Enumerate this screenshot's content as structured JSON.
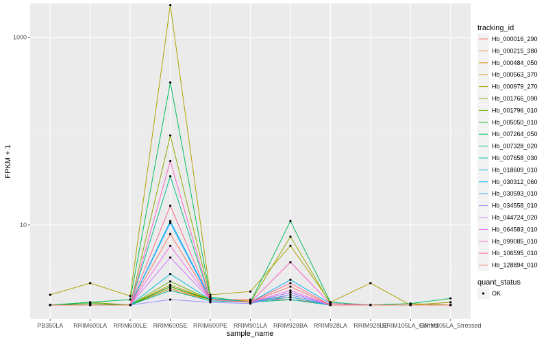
{
  "chart_data": {
    "type": "line",
    "ylabel": "FPKM + 1",
    "xlabel": "sample_name",
    "y_scale": "log10",
    "ylim": [
      1,
      2300
    ],
    "y_ticks": [
      10,
      1000
    ],
    "grid": true,
    "legend_position": "right",
    "legend_title": "tracking_id",
    "legend2_title": "quant_status",
    "legend2_items": [
      "OK"
    ],
    "categories": [
      "PB350LA",
      "RRIM600LA",
      "RRIM600LE",
      "RRIM600SE",
      "RRIM600PE",
      "RRIM901LA",
      "RRIM928BA",
      "RRIM928LA",
      "RRIM928LE",
      "RRIM105LA_Control",
      "RRIM105LA_Stressed"
    ],
    "series": [
      {
        "name": "Hb_000016_290",
        "color": "#F8766D",
        "values": [
          1.4,
          1.4,
          1.4,
          2.2,
          1.6,
          1.6,
          1.6,
          1.45,
          1.4,
          1.4,
          1.4
        ]
      },
      {
        "name": "Hb_000215_380",
        "color": "#EC8239",
        "values": [
          1.4,
          1.4,
          1.4,
          2.0,
          1.6,
          1.5,
          1.6,
          1.4,
          1.4,
          1.4,
          1.4
        ]
      },
      {
        "name": "Hb_000484_050",
        "color": "#DB8E00",
        "values": [
          1.4,
          1.4,
          1.4,
          2.1,
          1.6,
          1.55,
          1.7,
          1.4,
          1.4,
          1.4,
          1.4
        ]
      },
      {
        "name": "Hb_000563_370",
        "color": "#C79800",
        "values": [
          1.4,
          1.45,
          1.4,
          2.3,
          1.6,
          1.5,
          1.6,
          1.4,
          1.4,
          1.4,
          1.4
        ]
      },
      {
        "name": "Hb_000979_270",
        "color": "#AEA200",
        "values": [
          1.8,
          2.4,
          1.75,
          2200,
          1.8,
          1.95,
          6.0,
          1.5,
          2.4,
          1.4,
          1.5
        ]
      },
      {
        "name": "Hb_001766_090",
        "color": "#8FAA00",
        "values": [
          1.4,
          1.5,
          1.4,
          90,
          1.7,
          1.5,
          7.5,
          1.45,
          1.4,
          1.45,
          1.4
        ]
      },
      {
        "name": "Hb_001796_010",
        "color": "#64B200",
        "values": [
          1.4,
          1.4,
          1.4,
          2.5,
          1.6,
          1.5,
          1.7,
          1.4,
          1.4,
          1.4,
          1.4
        ]
      },
      {
        "name": "Hb_005050_010",
        "color": "#00B81B",
        "values": [
          1.4,
          1.45,
          1.4,
          2.2,
          1.6,
          1.5,
          1.6,
          1.4,
          1.4,
          1.4,
          1.4
        ]
      },
      {
        "name": "Hb_007264_050",
        "color": "#00BD5C",
        "values": [
          1.4,
          1.5,
          1.6,
          330,
          1.7,
          1.5,
          11.0,
          1.5,
          1.4,
          1.45,
          1.65
        ]
      },
      {
        "name": "Hb_007328_020",
        "color": "#00C08E",
        "values": [
          1.4,
          1.4,
          1.4,
          33,
          1.6,
          1.5,
          1.8,
          1.4,
          1.4,
          1.4,
          1.4
        ]
      },
      {
        "name": "Hb_007658_030",
        "color": "#00C1B2",
        "values": [
          1.4,
          1.4,
          1.4,
          2.0,
          1.55,
          1.5,
          1.6,
          1.4,
          1.4,
          1.4,
          1.4
        ]
      },
      {
        "name": "Hb_018609_010",
        "color": "#00BCD6",
        "values": [
          1.4,
          1.4,
          1.4,
          3.0,
          1.6,
          1.5,
          1.9,
          1.4,
          1.4,
          1.4,
          1.4
        ]
      },
      {
        "name": "Hb_030312_060",
        "color": "#00B3F2",
        "values": [
          1.4,
          1.4,
          1.4,
          11.0,
          1.65,
          1.5,
          2.6,
          1.45,
          1.4,
          1.4,
          1.4
        ]
      },
      {
        "name": "Hb_030593_010",
        "color": "#29A3FF",
        "values": [
          1.4,
          1.4,
          1.4,
          10.5,
          1.6,
          1.5,
          1.7,
          1.4,
          1.4,
          1.4,
          1.4
        ]
      },
      {
        "name": "Hb_034558_010",
        "color": "#9C8DFF",
        "values": [
          1.4,
          1.4,
          1.4,
          1.6,
          1.5,
          1.45,
          1.8,
          1.4,
          1.4,
          1.4,
          1.4
        ]
      },
      {
        "name": "Hb_044724_020",
        "color": "#D277FF",
        "values": [
          1.4,
          1.4,
          1.4,
          4.5,
          1.6,
          1.5,
          1.9,
          1.4,
          1.4,
          1.4,
          1.4
        ]
      },
      {
        "name": "Hb_064583_010",
        "color": "#F269F4",
        "values": [
          1.4,
          1.4,
          1.4,
          6.0,
          1.6,
          1.5,
          2.0,
          1.4,
          1.4,
          1.4,
          1.4
        ]
      },
      {
        "name": "Hb_099085_010",
        "color": "#FF61C9",
        "values": [
          1.4,
          1.4,
          1.4,
          48,
          1.6,
          1.5,
          4.0,
          1.45,
          1.4,
          1.4,
          1.4
        ]
      },
      {
        "name": "Hb_106595_010",
        "color": "#FF6C90",
        "values": [
          1.4,
          1.4,
          1.4,
          16,
          1.6,
          1.5,
          2.4,
          1.4,
          1.4,
          1.4,
          1.4
        ]
      },
      {
        "name": "Hb_128894_010",
        "color": "#F8766D",
        "values": [
          1.4,
          1.4,
          1.4,
          8.0,
          1.6,
          1.5,
          2.2,
          1.4,
          1.4,
          1.4,
          1.4
        ]
      }
    ]
  }
}
